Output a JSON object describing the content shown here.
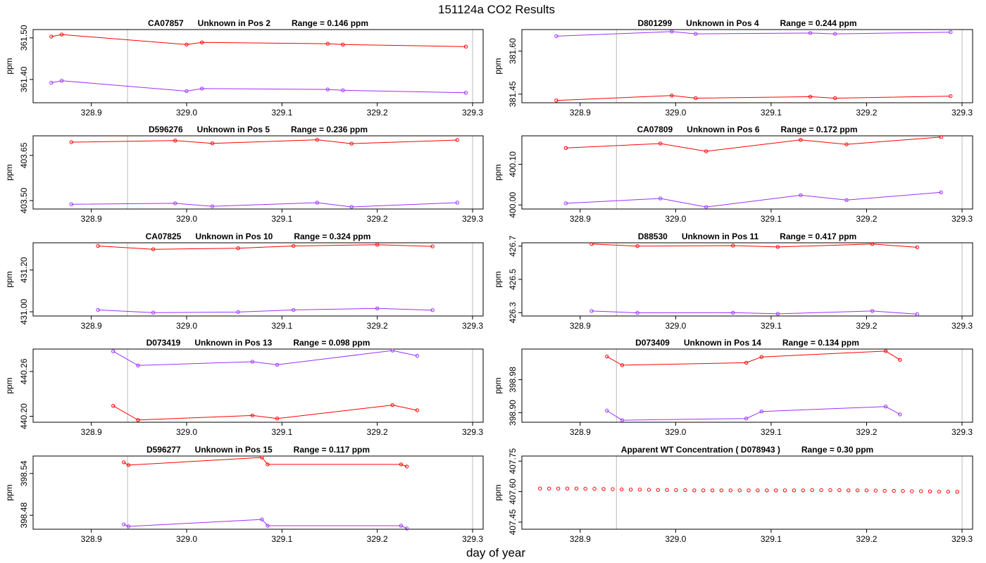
{
  "figure": {
    "title": "151124a  CO2 Results",
    "xlabel": "day of year",
    "ylabel": "ppm"
  },
  "colors": {
    "series_a": "#ff0000",
    "series_b": "#9b30ff",
    "refline": "#bbbbbb"
  },
  "chart_data": [
    {
      "type": "line",
      "id": "p1",
      "title_parts": [
        "CA07857",
        "Unknown in Pos 2",
        "Range =  0.146 ppm"
      ],
      "xlim": [
        328.85,
        329.3
      ],
      "xticks": [
        328.9,
        329.0,
        329.1,
        329.2,
        329.3
      ],
      "xtick_labels": [
        "328.9",
        "329.0",
        "329.1",
        "329.2",
        "329.3"
      ],
      "ylim": [
        361.344,
        361.52
      ],
      "yticks": [
        361.4,
        361.5
      ],
      "ytick_labels": [
        "361.40",
        "361.50"
      ],
      "vlines": [
        328.938,
        329.3
      ],
      "series": [
        {
          "name": "red",
          "color": "#ff0000",
          "x": [
            328.858,
            328.869,
            329.0,
            329.016,
            329.148,
            329.164,
            329.293
          ],
          "y": [
            361.503,
            361.508,
            361.484,
            361.489,
            361.486,
            361.484,
            361.479
          ]
        },
        {
          "name": "purple",
          "color": "#9b30ff",
          "x": [
            328.858,
            328.869,
            329.0,
            329.016,
            329.148,
            329.164,
            329.293
          ],
          "y": [
            361.392,
            361.397,
            361.372,
            361.378,
            361.376,
            361.374,
            361.368
          ]
        }
      ]
    },
    {
      "type": "line",
      "id": "p2",
      "title_parts": [
        "D801299",
        "Unknown in Pos 4",
        "Range =  0.244 ppm"
      ],
      "xlim": [
        328.85,
        329.3
      ],
      "xticks": [
        328.9,
        329.0,
        329.1,
        329.2,
        329.3
      ],
      "xtick_labels": [
        "328.9",
        "329.0",
        "329.1",
        "329.2",
        "329.3"
      ],
      "ylim": [
        381.42,
        381.675
      ],
      "yticks": [
        381.45,
        381.6
      ],
      "ytick_labels": [
        "381.45",
        "381.60"
      ],
      "vlines": [
        328.938,
        329.3
      ],
      "series": [
        {
          "name": "purple",
          "color": "#9b30ff",
          "x": [
            328.875,
            328.996,
            329.021,
            329.141,
            329.167,
            329.288
          ],
          "y": [
            381.652,
            381.668,
            381.66,
            381.663,
            381.66,
            381.666
          ]
        },
        {
          "name": "red",
          "color": "#ff0000",
          "x": [
            328.875,
            328.996,
            329.021,
            329.141,
            329.167,
            329.288
          ],
          "y": [
            381.428,
            381.445,
            381.436,
            381.441,
            381.436,
            381.443
          ]
        }
      ]
    },
    {
      "type": "line",
      "id": "p3",
      "title_parts": [
        "D596276",
        "Unknown in Pos 5",
        "Range =  0.236 ppm"
      ],
      "xlim": [
        328.85,
        329.3
      ],
      "xticks": [
        328.9,
        329.0,
        329.1,
        329.2,
        329.3
      ],
      "xtick_labels": [
        "328.9",
        "329.0",
        "329.1",
        "329.2",
        "329.3"
      ],
      "ylim": [
        403.472,
        403.715
      ],
      "yticks": [
        403.5,
        403.65
      ],
      "ytick_labels": [
        "403.50",
        "403.65"
      ],
      "vlines": [
        328.938,
        329.3
      ],
      "series": [
        {
          "name": "red",
          "color": "#ff0000",
          "x": [
            328.879,
            328.988,
            329.027,
            329.137,
            329.173,
            329.284
          ],
          "y": [
            403.694,
            403.699,
            403.69,
            403.702,
            403.689,
            403.701
          ]
        },
        {
          "name": "purple",
          "color": "#9b30ff",
          "x": [
            328.879,
            328.988,
            329.027,
            329.137,
            329.173,
            329.284
          ],
          "y": [
            403.488,
            403.491,
            403.481,
            403.493,
            403.479,
            403.493
          ]
        }
      ]
    },
    {
      "type": "line",
      "id": "p4",
      "title_parts": [
        "CA07809",
        "Unknown in Pos 6",
        "Range =  0.172 ppm"
      ],
      "xlim": [
        328.85,
        329.3
      ],
      "xticks": [
        328.9,
        329.0,
        329.1,
        329.2,
        329.3
      ],
      "xtick_labels": [
        "328.9",
        "329.0",
        "329.1",
        "329.2",
        "329.3"
      ],
      "ylim": [
        399.99,
        400.17
      ],
      "yticks": [
        400.0,
        400.1
      ],
      "ytick_labels": [
        "400.00",
        "400.10"
      ],
      "vlines": [
        328.938,
        329.3
      ],
      "series": [
        {
          "name": "red",
          "color": "#ff0000",
          "x": [
            328.885,
            328.984,
            329.032,
            329.131,
            329.179,
            329.278
          ],
          "y": [
            400.14,
            400.151,
            400.132,
            400.16,
            400.149,
            400.167
          ]
        },
        {
          "name": "purple",
          "color": "#9b30ff",
          "x": [
            328.885,
            328.984,
            329.032,
            329.131,
            329.179,
            329.278
          ],
          "y": [
            400.004,
            400.016,
            399.995,
            400.024,
            400.012,
            400.031
          ]
        }
      ]
    },
    {
      "type": "line",
      "id": "p5",
      "title_parts": [
        "CA07825",
        "Unknown in Pos 10",
        "Range =  0.324 ppm"
      ],
      "xlim": [
        328.85,
        329.3
      ],
      "xticks": [
        328.9,
        329.0,
        329.1,
        329.2,
        329.3
      ],
      "xtick_labels": [
        "328.9",
        "329.0",
        "329.1",
        "329.2",
        "329.3"
      ],
      "ylim": [
        430.98,
        431.33
      ],
      "yticks": [
        431.0,
        431.2
      ],
      "ytick_labels": [
        "431.00",
        "431.20"
      ],
      "vlines": [
        328.938,
        329.3
      ],
      "series": [
        {
          "name": "red",
          "color": "#ff0000",
          "x": [
            328.907,
            328.965,
            329.054,
            329.112,
            329.2,
            329.258
          ],
          "y": [
            431.315,
            431.299,
            431.304,
            431.315,
            431.321,
            431.313
          ]
        },
        {
          "name": "purple",
          "color": "#9b30ff",
          "x": [
            328.907,
            328.965,
            329.054,
            329.112,
            329.2,
            329.258
          ],
          "y": [
            431.009,
            430.996,
            430.999,
            431.009,
            431.016,
            431.008
          ]
        }
      ]
    },
    {
      "type": "line",
      "id": "p6",
      "title_parts": [
        "D88530",
        "Unknown in Pos 11",
        "Range =  0.417 ppm"
      ],
      "xlim": [
        328.85,
        329.3
      ],
      "xticks": [
        328.9,
        329.0,
        329.1,
        329.2,
        329.3
      ],
      "xtick_labels": [
        "328.9",
        "329.0",
        "329.1",
        "329.2",
        "329.3"
      ],
      "ylim": [
        426.28,
        426.72
      ],
      "yticks": [
        426.3,
        426.5,
        426.7
      ],
      "ytick_labels": [
        "426.3",
        "426.5",
        "426.7"
      ],
      "vlines": [
        328.938,
        329.3
      ],
      "series": [
        {
          "name": "red",
          "color": "#ff0000",
          "x": [
            328.912,
            328.96,
            329.06,
            329.107,
            329.206,
            329.253
          ],
          "y": [
            426.713,
            426.7,
            426.703,
            426.695,
            426.713,
            426.693
          ]
        },
        {
          "name": "purple",
          "color": "#9b30ff",
          "x": [
            328.912,
            328.96,
            329.06,
            329.107,
            329.206,
            329.253
          ],
          "y": [
            426.31,
            426.299,
            426.3,
            426.293,
            426.31,
            426.291
          ]
        }
      ]
    },
    {
      "type": "line",
      "id": "p7",
      "title_parts": [
        "D073419",
        "Unknown in Pos 13",
        "Range =  0.098 ppm"
      ],
      "xlim": [
        328.85,
        329.3
      ],
      "xticks": [
        328.9,
        329.0,
        329.1,
        329.2,
        329.3
      ],
      "xtick_labels": [
        "328.9",
        "329.0",
        "329.1",
        "329.2",
        "329.3"
      ],
      "ylim": [
        440.192,
        440.29
      ],
      "yticks": [
        440.2,
        440.26
      ],
      "ytick_labels": [
        "440.20",
        "440.26"
      ],
      "vlines": [
        328.938,
        329.3
      ],
      "series": [
        {
          "name": "purple",
          "color": "#9b30ff",
          "x": [
            328.923,
            328.949,
            329.069,
            329.095,
            329.216,
            329.242
          ],
          "y": [
            440.287,
            440.268,
            440.273,
            440.269,
            440.288,
            440.281
          ]
        },
        {
          "name": "red",
          "color": "#ff0000",
          "x": [
            328.923,
            328.949,
            329.069,
            329.095,
            329.216,
            329.242
          ],
          "y": [
            440.214,
            440.195,
            440.201,
            440.197,
            440.215,
            440.208
          ]
        }
      ]
    },
    {
      "type": "line",
      "id": "p8",
      "title_parts": [
        "D073409",
        "Unknown in Pos 14",
        "Range =  0.134 ppm"
      ],
      "xlim": [
        328.85,
        329.3
      ],
      "xticks": [
        328.9,
        329.0,
        329.1,
        329.2,
        329.3
      ],
      "xtick_labels": [
        "328.9",
        "329.0",
        "329.1",
        "329.2",
        "329.3"
      ],
      "ylim": [
        398.877,
        399.054
      ],
      "yticks": [
        398.9,
        398.98
      ],
      "ytick_labels": [
        "398.90",
        "398.98"
      ],
      "vlines": [
        328.938,
        329.3
      ],
      "series": [
        {
          "name": "red",
          "color": "#ff0000",
          "x": [
            328.928,
            328.944,
            329.074,
            329.09,
            329.22,
            329.235
          ],
          "y": [
            399.036,
            399.015,
            399.021,
            399.035,
            399.049,
            399.028
          ]
        },
        {
          "name": "purple",
          "color": "#9b30ff",
          "x": [
            328.928,
            328.944,
            329.074,
            329.09,
            329.22,
            329.235
          ],
          "y": [
            398.905,
            398.882,
            398.886,
            398.903,
            398.915,
            398.896
          ]
        }
      ]
    },
    {
      "type": "line",
      "id": "p9",
      "title_parts": [
        "D596277",
        "Unknown in Pos 15",
        "Range =  0.117 ppm"
      ],
      "xlim": [
        328.85,
        329.3
      ],
      "xticks": [
        328.9,
        329.0,
        329.1,
        329.2,
        329.3
      ],
      "xtick_labels": [
        "328.9",
        "329.0",
        "329.1",
        "329.2",
        "329.3"
      ],
      "ylim": [
        398.46,
        398.565
      ],
      "yticks": [
        398.48,
        398.54
      ],
      "ytick_labels": [
        "398.48",
        "398.54"
      ],
      "vlines": [
        328.938,
        329.3
      ],
      "series": [
        {
          "name": "red",
          "color": "#ff0000",
          "x": [
            328.934,
            328.939,
            329.079,
            329.085,
            329.225,
            329.231
          ],
          "y": [
            398.556,
            398.552,
            398.563,
            398.553,
            398.553,
            398.55
          ]
        },
        {
          "name": "purple",
          "color": "#9b30ff",
          "x": [
            328.934,
            328.939,
            329.079,
            329.085,
            329.225,
            329.231
          ],
          "y": [
            398.467,
            398.464,
            398.474,
            398.465,
            398.465,
            398.461
          ]
        }
      ]
    },
    {
      "type": "scatter",
      "id": "p10",
      "title_parts": [
        "Apparent WT Concentration ( D078943 )",
        "Range = 0.30 ppm"
      ],
      "xlim": [
        328.85,
        329.3
      ],
      "xticks": [
        328.9,
        329.0,
        329.1,
        329.2,
        329.3
      ],
      "xtick_labels": [
        "328.9",
        "329.0",
        "329.1",
        "329.2",
        "329.3"
      ],
      "ylim": [
        407.415,
        407.775
      ],
      "yticks": [
        407.45,
        407.6,
        407.75
      ],
      "ytick_labels": [
        "407.45",
        "407.60",
        "407.75"
      ],
      "vlines": [
        328.938,
        329.3
      ],
      "series": [
        {
          "name": "wt",
          "color": "#ff0000",
          "x": [
            328.858,
            328.8675,
            328.877,
            328.8865,
            328.896,
            328.9055,
            328.915,
            328.9245,
            328.934,
            328.9435,
            328.953,
            328.9625,
            328.972,
            328.9815,
            328.991,
            329.0005,
            329.01,
            329.0195,
            329.029,
            329.0385,
            329.048,
            329.0575,
            329.067,
            329.0765,
            329.086,
            329.0955,
            329.105,
            329.1145,
            329.124,
            329.1335,
            329.143,
            329.1525,
            329.162,
            329.1715,
            329.181,
            329.1905,
            329.2,
            329.2095,
            329.219,
            329.2285,
            329.238,
            329.2475,
            329.257,
            329.2665,
            329.276,
            329.2855,
            329.295
          ],
          "y": [
            407.615,
            407.615,
            407.615,
            407.615,
            407.615,
            407.614,
            407.614,
            407.613,
            407.612,
            407.611,
            407.61,
            407.61,
            407.609,
            407.608,
            407.608,
            407.607,
            407.607,
            407.606,
            407.606,
            407.606,
            407.606,
            407.606,
            407.606,
            407.606,
            407.606,
            407.606,
            407.606,
            407.606,
            407.606,
            407.606,
            407.607,
            407.607,
            407.607,
            407.607,
            407.606,
            407.606,
            407.606,
            407.605,
            407.604,
            407.604,
            407.603,
            407.602,
            407.602,
            407.601,
            407.6,
            407.6,
            407.599
          ]
        }
      ]
    }
  ]
}
